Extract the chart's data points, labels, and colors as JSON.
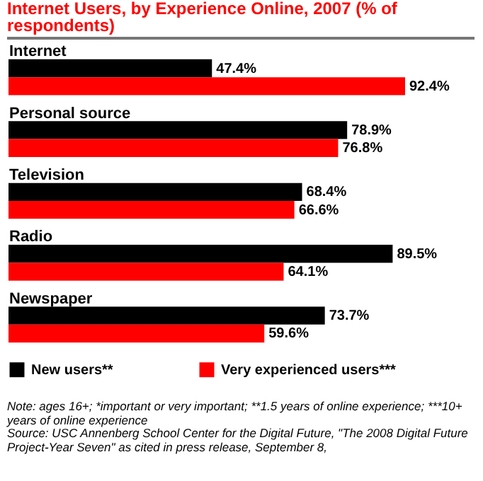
{
  "chart_data": {
    "type": "bar",
    "orientation": "horizontal",
    "title": "Internet Users, by Experience Online, 2007 (% of respondents)",
    "categories": [
      "Internet",
      "Personal source",
      "Television",
      "Radio",
      "Newspaper"
    ],
    "series": [
      {
        "name": "New users**",
        "color": "#000000",
        "values": [
          47.4,
          78.9,
          68.4,
          89.5,
          73.7
        ],
        "value_labels": [
          "47.4%",
          "78.9%",
          "68.4%",
          "89.5%",
          "73.7%"
        ]
      },
      {
        "name": "Very experienced users***",
        "color": "#ff0000",
        "values": [
          92.4,
          76.8,
          66.6,
          64.1,
          59.6
        ],
        "value_labels": [
          "92.4%",
          "76.8%",
          "66.6%",
          "64.1%",
          "59.6%"
        ]
      }
    ],
    "legend": "bottom",
    "annotations": [
      "Note: ages 16+; *important or very important; **1.5 years of online experience; ***10+ years of online experience",
      "Source: USC Annenberg School Center for the Digital Future, \"The 2008 Digital Future Project-Year Seven\" as cited in press release, September 8,"
    ]
  }
}
